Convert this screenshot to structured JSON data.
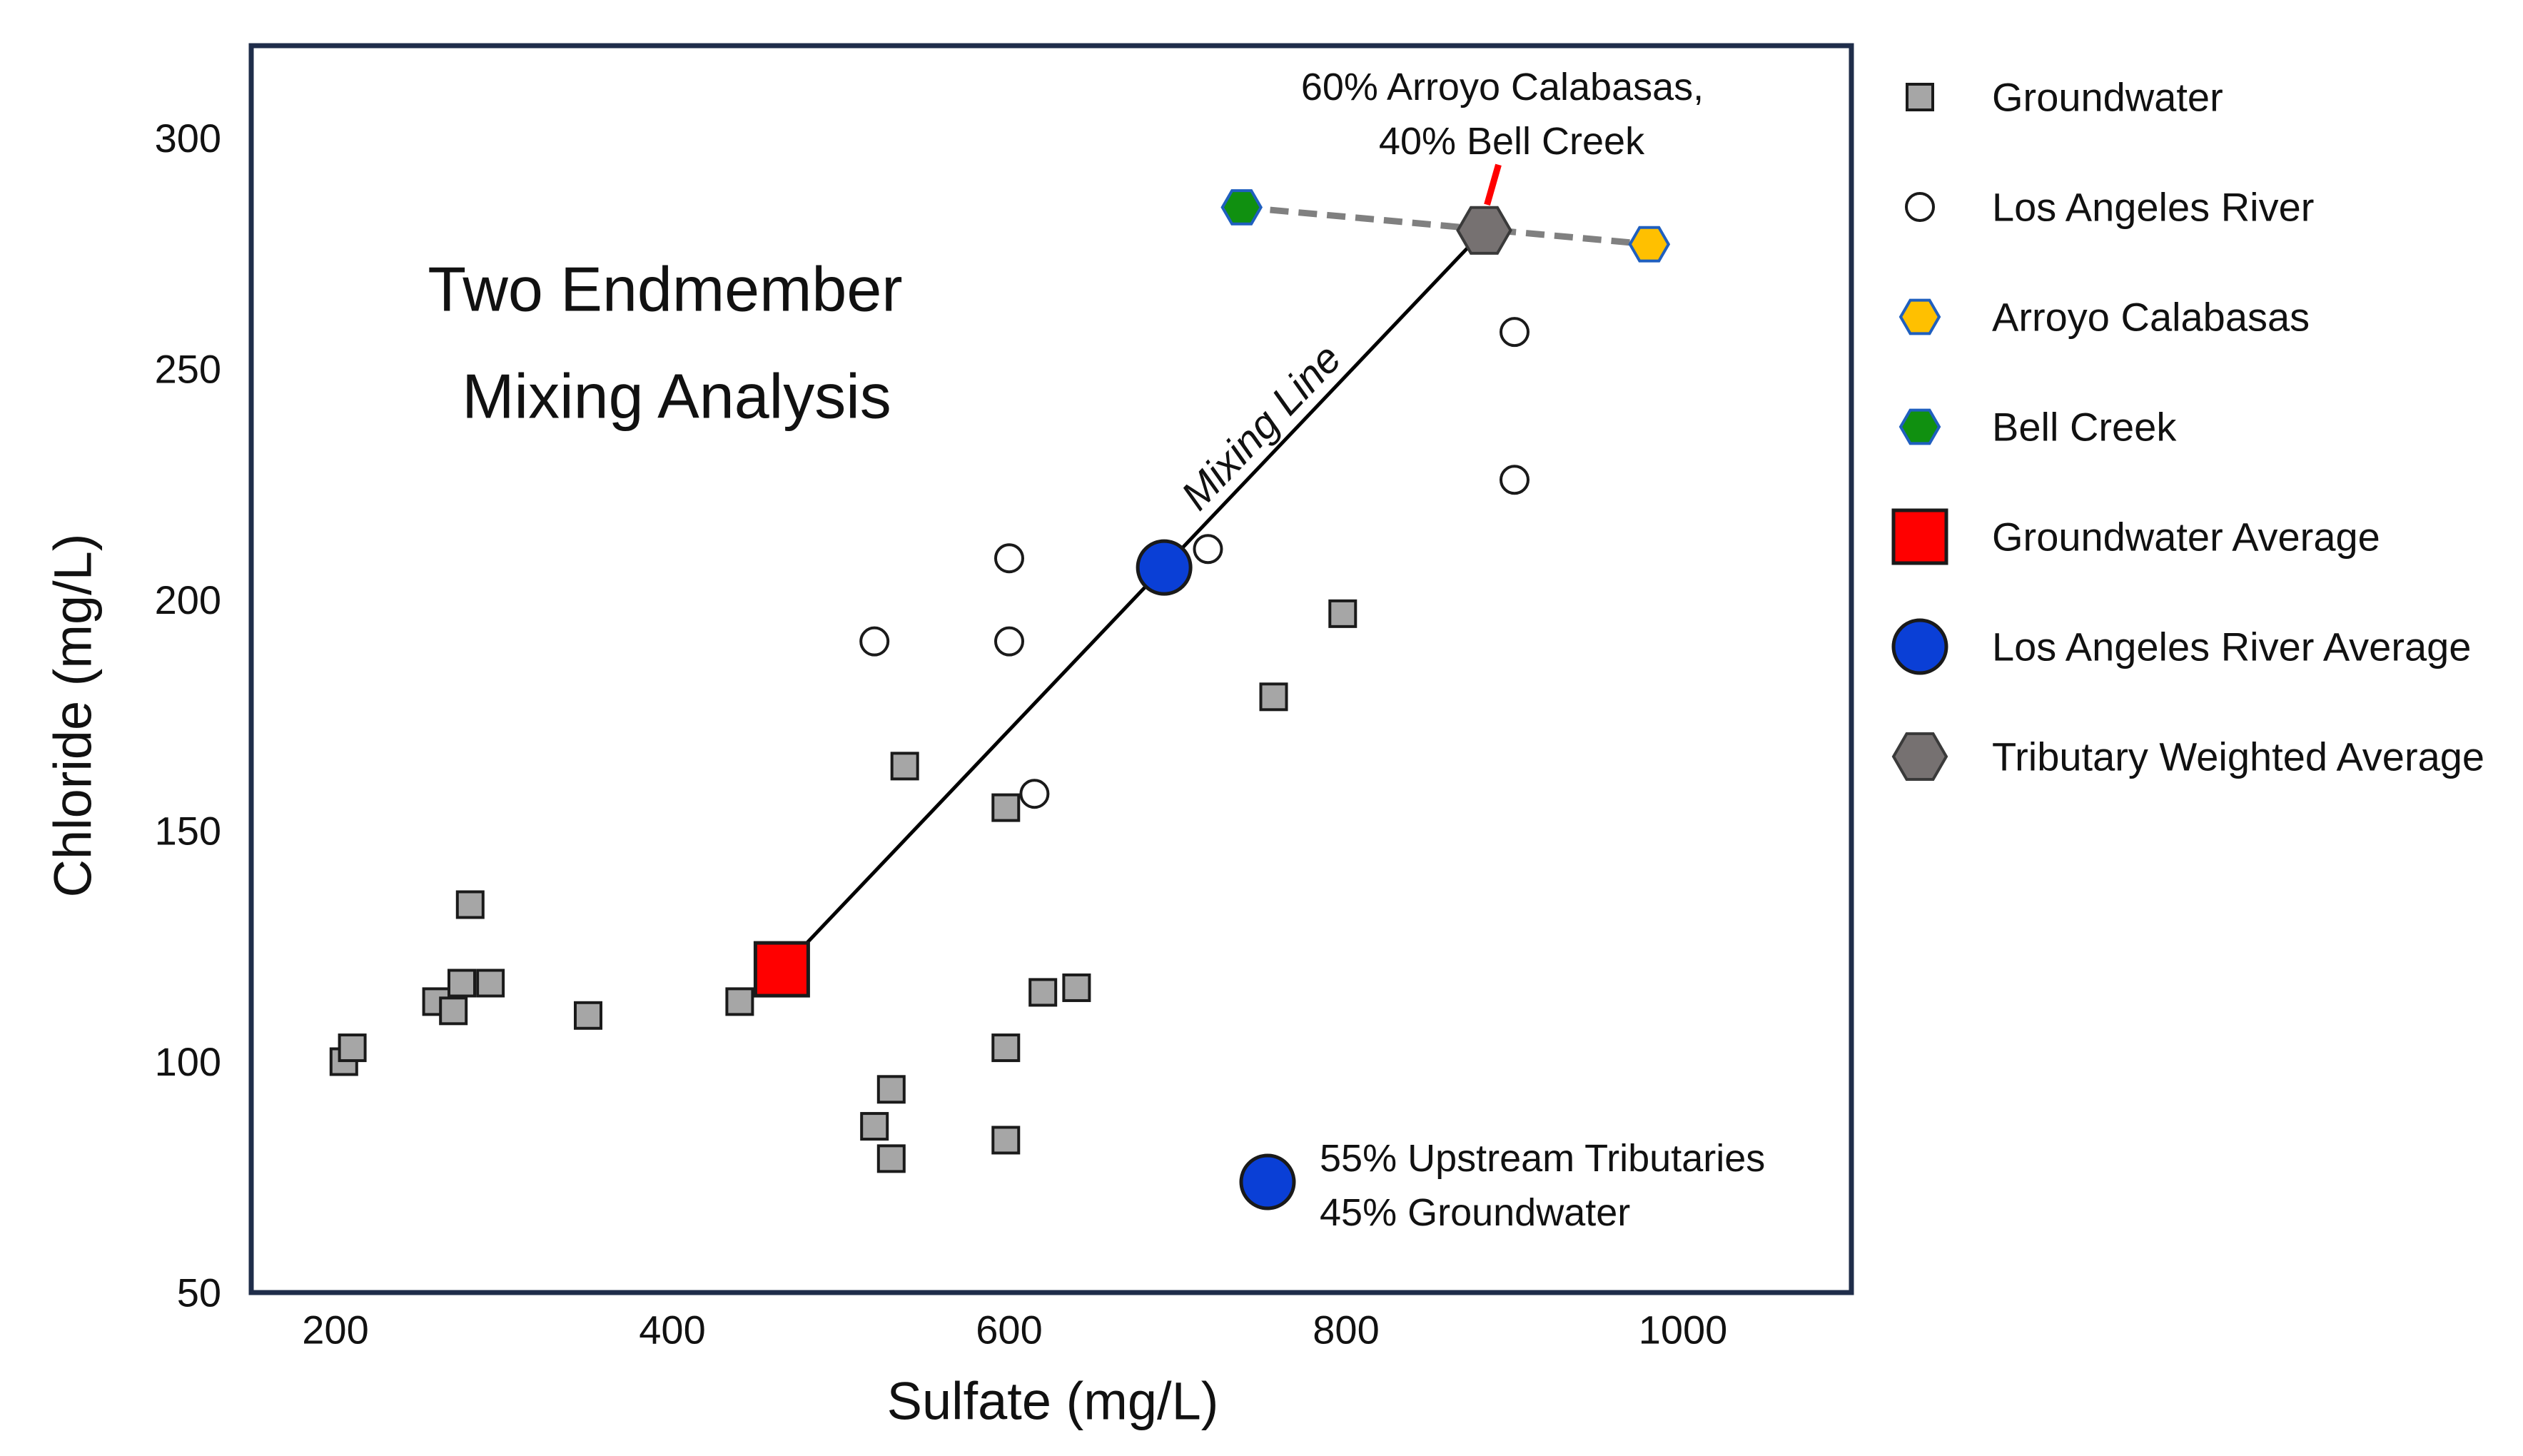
{
  "chart_data": {
    "type": "scatter",
    "title": "Two Endmember Mixing Analysis",
    "title_lines": [
      "Two Endmember",
      "Mixing Analysis"
    ],
    "xlabel": "Sulfate (mg/L)",
    "ylabel": "Chloride (mg/L)",
    "xlim": [
      150,
      1100
    ],
    "ylim": [
      50,
      320
    ],
    "xticks": [
      200,
      400,
      600,
      800,
      1000
    ],
    "yticks": [
      50,
      100,
      150,
      200,
      250,
      300
    ],
    "grid": false,
    "legend_position": "right",
    "colors": {
      "groundwater": "#a6a6a6",
      "river": "#ffffff",
      "arroyo": "#ffc000",
      "bell": "#109010",
      "gw_avg": "#ff0000",
      "river_avg": "#0a3fd6",
      "trib_avg": "#767171",
      "frame": "#1f2d4a",
      "red_tick": "#ff0000",
      "dash_line": "#808080"
    },
    "series": [
      {
        "key": "groundwater",
        "name": "Groundwater",
        "marker": "square",
        "points": [
          {
            "x": 205,
            "y": 100
          },
          {
            "x": 210,
            "y": 103
          },
          {
            "x": 260,
            "y": 113
          },
          {
            "x": 270,
            "y": 111
          },
          {
            "x": 275,
            "y": 117
          },
          {
            "x": 280,
            "y": 134
          },
          {
            "x": 292,
            "y": 117
          },
          {
            "x": 350,
            "y": 110
          },
          {
            "x": 440,
            "y": 113
          },
          {
            "x": 520,
            "y": 86
          },
          {
            "x": 530,
            "y": 79
          },
          {
            "x": 530,
            "y": 94
          },
          {
            "x": 538,
            "y": 164
          },
          {
            "x": 598,
            "y": 155
          },
          {
            "x": 598,
            "y": 103
          },
          {
            "x": 598,
            "y": 83
          },
          {
            "x": 620,
            "y": 115
          },
          {
            "x": 640,
            "y": 116
          },
          {
            "x": 757,
            "y": 179
          },
          {
            "x": 798,
            "y": 197
          }
        ]
      },
      {
        "key": "river",
        "name": "Los Angeles River",
        "marker": "circle",
        "points": [
          {
            "x": 520,
            "y": 191
          },
          {
            "x": 600,
            "y": 209
          },
          {
            "x": 600,
            "y": 191
          },
          {
            "x": 615,
            "y": 158
          },
          {
            "x": 718,
            "y": 211
          },
          {
            "x": 900,
            "y": 258
          },
          {
            "x": 900,
            "y": 226
          }
        ]
      },
      {
        "key": "arroyo",
        "name": "Arroyo Calabasas",
        "marker": "hexagon",
        "points": [
          {
            "x": 980,
            "y": 277
          }
        ]
      },
      {
        "key": "bell",
        "name": "Bell Creek",
        "marker": "hexagon",
        "points": [
          {
            "x": 738,
            "y": 285
          }
        ]
      },
      {
        "key": "gw_avg",
        "name": "Groundwater Average",
        "marker": "square-large",
        "points": [
          {
            "x": 465,
            "y": 120
          }
        ]
      },
      {
        "key": "river_avg",
        "name": "Los Angeles River Average",
        "marker": "circle-large",
        "points": [
          {
            "x": 692,
            "y": 207
          }
        ]
      },
      {
        "key": "trib_avg",
        "name": "Tributary Weighted Average",
        "marker": "hexagon-large",
        "points": [
          {
            "x": 882,
            "y": 280
          }
        ]
      }
    ],
    "mixing_line": {
      "label": "Mixing Line",
      "from": {
        "x": 465,
        "y": 120
      },
      "to": {
        "x": 882,
        "y": 280
      }
    },
    "tributary_line": {
      "from": {
        "x": 738,
        "y": 285
      },
      "to": {
        "x": 980,
        "y": 277
      }
    },
    "annotations": {
      "tributary_label_lines": [
        "60% Arroyo Calabasas,",
        "40% Bell Creek"
      ],
      "mix_label_lines": [
        "55% Upstream Tributaries",
        "45% Groundwater"
      ]
    }
  }
}
